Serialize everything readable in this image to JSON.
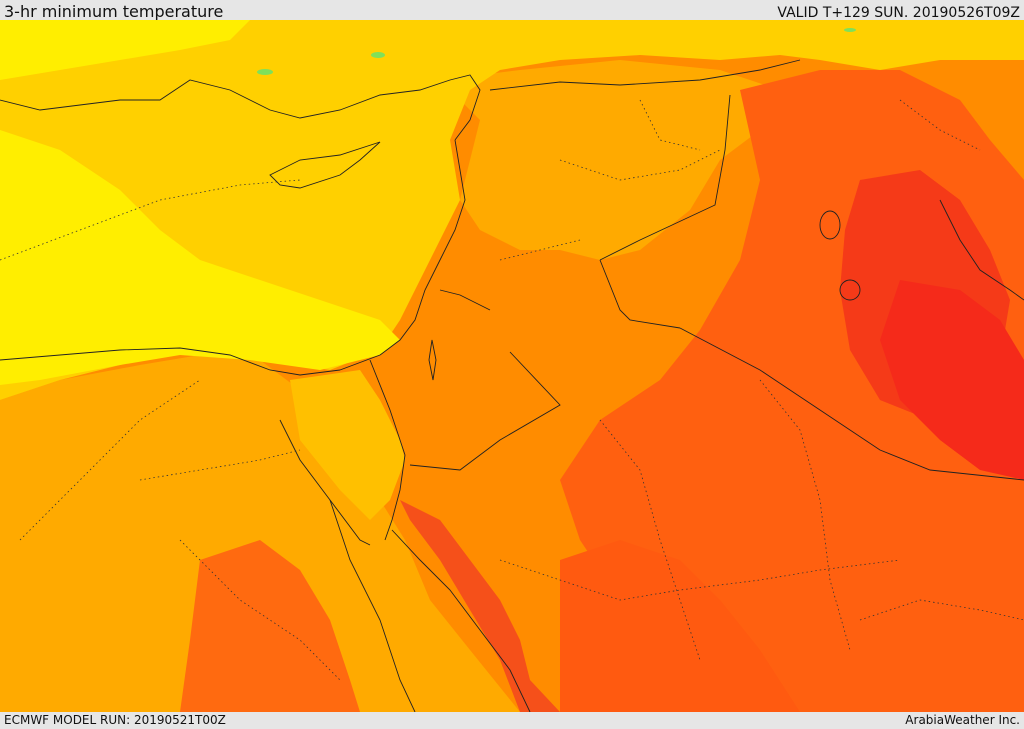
{
  "header": {
    "title": "3-hr minimum temperature",
    "valid_time": "VALID T+129 SUN. 20190526T09Z"
  },
  "footer": {
    "model_run": "ECMWF MODEL RUN: 20190521T00Z",
    "credit": "ArabiaWeather Inc."
  },
  "map": {
    "field": "3-hr minimum temperature",
    "palette": {
      "coolest": "#ffff00",
      "cool": "#ffd700",
      "mild": "#ffaa00",
      "warm": "#ff8800",
      "hot": "#ff5a10",
      "hottest": "#f52a1a",
      "isolated_green": "#7fe05a"
    },
    "borders": "solid",
    "admin_borders": "dotted"
  }
}
